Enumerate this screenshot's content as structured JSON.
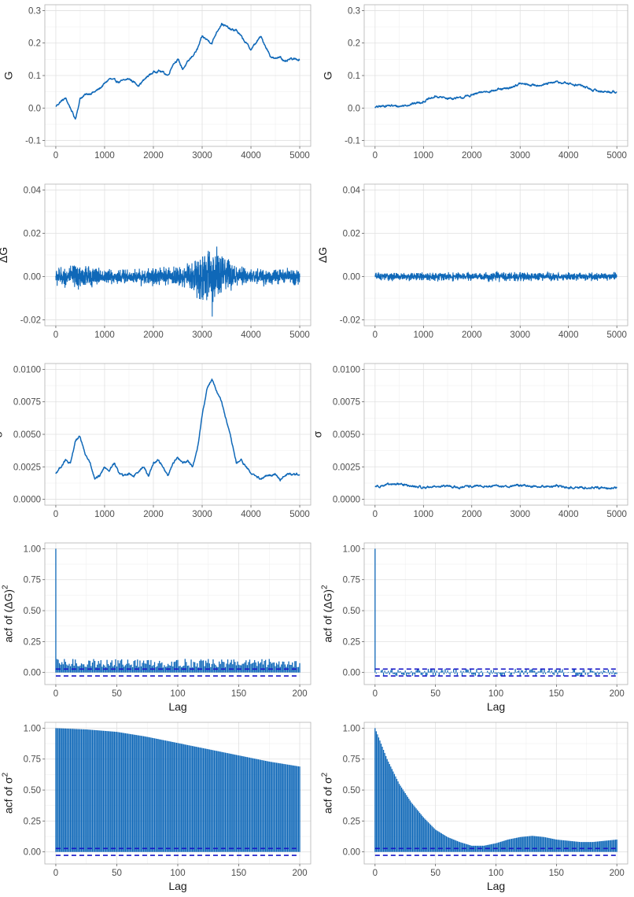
{
  "colors": {
    "series": "#0f68b8",
    "band": "#1616c8",
    "grid_major": "#e0e0e0",
    "grid_minor": "#f0f0f0",
    "panel_border": "#b3b3b3"
  },
  "chart_data": [
    {
      "id": "g-left",
      "type": "line",
      "panel": [
        0,
        0
      ],
      "ylabel": "G",
      "xlabel": "",
      "xlim": [
        0,
        5000
      ],
      "ylim": [
        -0.1,
        0.3
      ],
      "xticks": [
        0,
        1000,
        2000,
        3000,
        4000,
        5000
      ],
      "xtick_labels": [
        "0",
        "1000",
        "2000",
        "3000",
        "4000",
        "5000"
      ],
      "yticks": [
        -0.1,
        0.0,
        0.1,
        0.2,
        0.3
      ],
      "ytick_labels": [
        "-0.1",
        "0.0",
        "0.1",
        "0.2",
        "0.3"
      ],
      "grid": true,
      "series": [
        {
          "x": [
            0,
            100,
            200,
            300,
            400,
            500,
            600,
            700,
            800,
            900,
            1000,
            1100,
            1200,
            1300,
            1400,
            1500,
            1600,
            1700,
            1800,
            1900,
            2000,
            2100,
            2200,
            2300,
            2400,
            2500,
            2600,
            2700,
            2800,
            2900,
            3000,
            3100,
            3200,
            3300,
            3400,
            3500,
            3600,
            3700,
            3800,
            3900,
            4000,
            4100,
            4200,
            4300,
            4400,
            4500,
            4600,
            4700,
            4800,
            4900,
            5000
          ],
          "y": [
            0.005,
            0.02,
            0.03,
            0.0,
            -0.035,
            0.03,
            0.04,
            0.045,
            0.05,
            0.06,
            0.075,
            0.09,
            0.085,
            0.08,
            0.085,
            0.09,
            0.08,
            0.07,
            0.085,
            0.1,
            0.11,
            0.115,
            0.11,
            0.1,
            0.135,
            0.15,
            0.12,
            0.14,
            0.16,
            0.18,
            0.22,
            0.21,
            0.2,
            0.235,
            0.26,
            0.25,
            0.24,
            0.24,
            0.22,
            0.2,
            0.18,
            0.2,
            0.22,
            0.19,
            0.16,
            0.15,
            0.16,
            0.14,
            0.15,
            0.15,
            0.15
          ]
        }
      ]
    },
    {
      "id": "g-right",
      "type": "line",
      "panel": [
        1,
        0
      ],
      "ylabel": "G",
      "xlabel": "",
      "xlim": [
        0,
        5000
      ],
      "ylim": [
        -0.1,
        0.3
      ],
      "xticks": [
        0,
        1000,
        2000,
        3000,
        4000,
        5000
      ],
      "xtick_labels": [
        "0",
        "1000",
        "2000",
        "3000",
        "4000",
        "5000"
      ],
      "yticks": [
        -0.1,
        0.0,
        0.1,
        0.2,
        0.3
      ],
      "ytick_labels": [
        "-0.1",
        "0.0",
        "0.1",
        "0.2",
        "0.3"
      ],
      "grid": true,
      "series": [
        {
          "x": [
            0,
            250,
            500,
            750,
            1000,
            1250,
            1500,
            1750,
            2000,
            2250,
            2500,
            2750,
            3000,
            3250,
            3500,
            3750,
            4000,
            4250,
            4500,
            4750,
            5000
          ],
          "y": [
            0.002,
            0.008,
            0.005,
            0.012,
            0.02,
            0.035,
            0.03,
            0.03,
            0.04,
            0.05,
            0.055,
            0.06,
            0.075,
            0.07,
            0.072,
            0.08,
            0.075,
            0.07,
            0.055,
            0.05,
            0.05
          ]
        }
      ]
    },
    {
      "id": "dg-left",
      "type": "line",
      "panel": [
        0,
        1
      ],
      "ylabel": "ΔG",
      "xlabel": "",
      "xlim": [
        0,
        5000
      ],
      "ylim": [
        -0.02,
        0.04
      ],
      "xticks": [
        0,
        1000,
        2000,
        3000,
        4000,
        5000
      ],
      "xtick_labels": [
        "0",
        "1000",
        "2000",
        "3000",
        "4000",
        "5000"
      ],
      "yticks": [
        -0.02,
        0.0,
        0.02,
        0.04
      ],
      "ytick_labels": [
        "-0.02",
        "0.00",
        "0.02",
        "0.04"
      ],
      "grid": true,
      "noise_envelope": {
        "x": [
          0,
          250,
          500,
          750,
          1000,
          1500,
          2000,
          2500,
          2800,
          3000,
          3200,
          3400,
          3600,
          3800,
          4000,
          4500,
          5000
        ],
        "amplitude": [
          0.006,
          0.006,
          0.009,
          0.006,
          0.005,
          0.005,
          0.005,
          0.006,
          0.01,
          0.018,
          0.02,
          0.016,
          0.009,
          0.006,
          0.005,
          0.005,
          0.005
        ]
      }
    },
    {
      "id": "dg-right",
      "type": "line",
      "panel": [
        1,
        1
      ],
      "ylabel": "ΔG",
      "xlabel": "",
      "xlim": [
        0,
        5000
      ],
      "ylim": [
        -0.02,
        0.04
      ],
      "xticks": [
        0,
        1000,
        2000,
        3000,
        4000,
        5000
      ],
      "xtick_labels": [
        "0",
        "1000",
        "2000",
        "3000",
        "4000",
        "5000"
      ],
      "yticks": [
        -0.02,
        0.0,
        0.02,
        0.04
      ],
      "ytick_labels": [
        "-0.02",
        "0.00",
        "0.02",
        "0.04"
      ],
      "grid": true,
      "noise_envelope": {
        "x": [
          0,
          1000,
          2000,
          3000,
          4000,
          5000
        ],
        "amplitude": [
          0.0025,
          0.0025,
          0.0025,
          0.0028,
          0.0025,
          0.0025
        ]
      }
    },
    {
      "id": "sigma-left",
      "type": "line",
      "panel": [
        0,
        2
      ],
      "ylabel": "σ",
      "xlabel": "",
      "xlim": [
        0,
        5000
      ],
      "ylim": [
        0,
        0.01
      ],
      "xticks": [
        0,
        1000,
        2000,
        3000,
        4000,
        5000
      ],
      "xtick_labels": [
        "0",
        "1000",
        "2000",
        "3000",
        "4000",
        "5000"
      ],
      "yticks": [
        0.0,
        0.0025,
        0.005,
        0.0075,
        0.01
      ],
      "ytick_labels": [
        "0.0000",
        "0.0025",
        "0.0050",
        "0.0075",
        "0.0100"
      ],
      "grid": true,
      "series": [
        {
          "x": [
            0,
            100,
            200,
            300,
            400,
            500,
            600,
            700,
            800,
            900,
            1000,
            1100,
            1200,
            1300,
            1400,
            1500,
            1600,
            1700,
            1800,
            1900,
            2000,
            2100,
            2200,
            2300,
            2400,
            2500,
            2600,
            2700,
            2800,
            2900,
            3000,
            3100,
            3200,
            3300,
            3400,
            3500,
            3600,
            3700,
            3800,
            3900,
            4000,
            4100,
            4200,
            4300,
            4400,
            4500,
            4600,
            4700,
            4800,
            4900,
            5000
          ],
          "y": [
            0.002,
            0.0025,
            0.003,
            0.0027,
            0.0045,
            0.0048,
            0.0035,
            0.0028,
            0.0015,
            0.0018,
            0.0025,
            0.0022,
            0.0028,
            0.002,
            0.0018,
            0.002,
            0.0018,
            0.0022,
            0.0025,
            0.0018,
            0.0028,
            0.003,
            0.0025,
            0.0018,
            0.0028,
            0.0032,
            0.0028,
            0.003,
            0.0025,
            0.0038,
            0.0065,
            0.0085,
            0.0093,
            0.0083,
            0.0075,
            0.006,
            0.0045,
            0.0028,
            0.003,
            0.0025,
            0.002,
            0.0018,
            0.0015,
            0.0018,
            0.0018,
            0.002,
            0.0015,
            0.0018,
            0.002,
            0.0019,
            0.002
          ]
        }
      ]
    },
    {
      "id": "sigma-right",
      "type": "line",
      "panel": [
        1,
        2
      ],
      "ylabel": "σ",
      "xlabel": "",
      "xlim": [
        0,
        5000
      ],
      "ylim": [
        0,
        0.01
      ],
      "xticks": [
        0,
        1000,
        2000,
        3000,
        4000,
        5000
      ],
      "xtick_labels": [
        "0",
        "1000",
        "2000",
        "3000",
        "4000",
        "5000"
      ],
      "yticks": [
        0.0,
        0.0025,
        0.005,
        0.0075,
        0.01
      ],
      "ytick_labels": [
        "0.0000",
        "0.0025",
        "0.0050",
        "0.0075",
        "0.0100"
      ],
      "grid": true,
      "series": [
        {
          "x": [
            0,
            250,
            500,
            750,
            1000,
            1250,
            1500,
            1750,
            2000,
            2250,
            2500,
            2750,
            3000,
            3250,
            3500,
            3750,
            4000,
            4250,
            4500,
            4750,
            5000
          ],
          "y": [
            0.001,
            0.0011,
            0.0012,
            0.001,
            0.0009,
            0.001,
            0.001,
            0.0009,
            0.001,
            0.001,
            0.001,
            0.001,
            0.0011,
            0.001,
            0.001,
            0.001,
            0.0009,
            0.0009,
            0.0009,
            0.0009,
            0.0009
          ]
        }
      ]
    },
    {
      "id": "acf-dg2-left",
      "type": "bar",
      "panel": [
        0,
        3
      ],
      "ylabel": "acf of (ΔG)",
      "ylabel_superscript": "2",
      "xlabel": "Lag",
      "xlim": [
        0,
        200
      ],
      "ylim": [
        -0.05,
        1.0
      ],
      "xticks": [
        0,
        50,
        100,
        150,
        200
      ],
      "xtick_labels": [
        "0",
        "50",
        "100",
        "150",
        "200"
      ],
      "yticks": [
        0.0,
        0.25,
        0.5,
        0.75,
        1.0
      ],
      "ytick_labels": [
        "0.00",
        "0.25",
        "0.50",
        "0.75",
        "1.00"
      ],
      "grid": true,
      "lag0": 1.0,
      "acf_range": [
        0.04,
        0.11
      ],
      "confidence_band": [
        -0.028,
        0.028
      ]
    },
    {
      "id": "acf-dg2-right",
      "type": "bar",
      "panel": [
        1,
        3
      ],
      "ylabel": "acf of (ΔG)",
      "ylabel_superscript": "2",
      "xlabel": "Lag",
      "xlim": [
        0,
        200
      ],
      "ylim": [
        -0.05,
        1.0
      ],
      "xticks": [
        0,
        50,
        100,
        150,
        200
      ],
      "xtick_labels": [
        "0",
        "50",
        "100",
        "150",
        "200"
      ],
      "yticks": [
        0.0,
        0.25,
        0.5,
        0.75,
        1.0
      ],
      "ytick_labels": [
        "0.00",
        "0.25",
        "0.50",
        "0.75",
        "1.00"
      ],
      "grid": true,
      "lag0": 1.0,
      "acf_range": [
        -0.03,
        0.03
      ],
      "confidence_band": [
        -0.028,
        0.028
      ]
    },
    {
      "id": "acf-s2-left",
      "type": "bar",
      "panel": [
        0,
        4
      ],
      "ylabel": "acf of σ",
      "ylabel_superscript": "2",
      "xlabel": "Lag",
      "xlim": [
        0,
        200
      ],
      "ylim": [
        -0.05,
        1.0
      ],
      "xticks": [
        0,
        50,
        100,
        150,
        200
      ],
      "xtick_labels": [
        "0",
        "50",
        "100",
        "150",
        "200"
      ],
      "yticks": [
        0.0,
        0.25,
        0.5,
        0.75,
        1.0
      ],
      "ytick_labels": [
        "0.00",
        "0.25",
        "0.50",
        "0.75",
        "1.00"
      ],
      "grid": true,
      "lags": [
        0,
        25,
        50,
        75,
        100,
        125,
        150,
        175,
        200
      ],
      "acf": [
        1.0,
        0.99,
        0.97,
        0.93,
        0.88,
        0.83,
        0.78,
        0.73,
        0.69
      ],
      "confidence_band": [
        -0.028,
        0.028
      ]
    },
    {
      "id": "acf-s2-right",
      "type": "bar",
      "panel": [
        1,
        4
      ],
      "ylabel": "acf of σ",
      "ylabel_superscript": "2",
      "xlabel": "Lag",
      "xlim": [
        0,
        200
      ],
      "ylim": [
        -0.05,
        1.0
      ],
      "xticks": [
        0,
        50,
        100,
        150,
        200
      ],
      "xtick_labels": [
        "0",
        "50",
        "100",
        "150",
        "200"
      ],
      "yticks": [
        0.0,
        0.25,
        0.5,
        0.75,
        1.0
      ],
      "ytick_labels": [
        "0.00",
        "0.25",
        "0.50",
        "0.75",
        "1.00"
      ],
      "grid": true,
      "lags": [
        0,
        10,
        20,
        30,
        40,
        50,
        60,
        70,
        80,
        90,
        100,
        110,
        120,
        130,
        140,
        150,
        160,
        170,
        180,
        190,
        200
      ],
      "acf": [
        1.0,
        0.75,
        0.55,
        0.4,
        0.28,
        0.18,
        0.12,
        0.08,
        0.05,
        0.05,
        0.07,
        0.1,
        0.12,
        0.13,
        0.12,
        0.1,
        0.09,
        0.08,
        0.08,
        0.09,
        0.1
      ],
      "confidence_band": [
        -0.028,
        0.028
      ]
    }
  ]
}
